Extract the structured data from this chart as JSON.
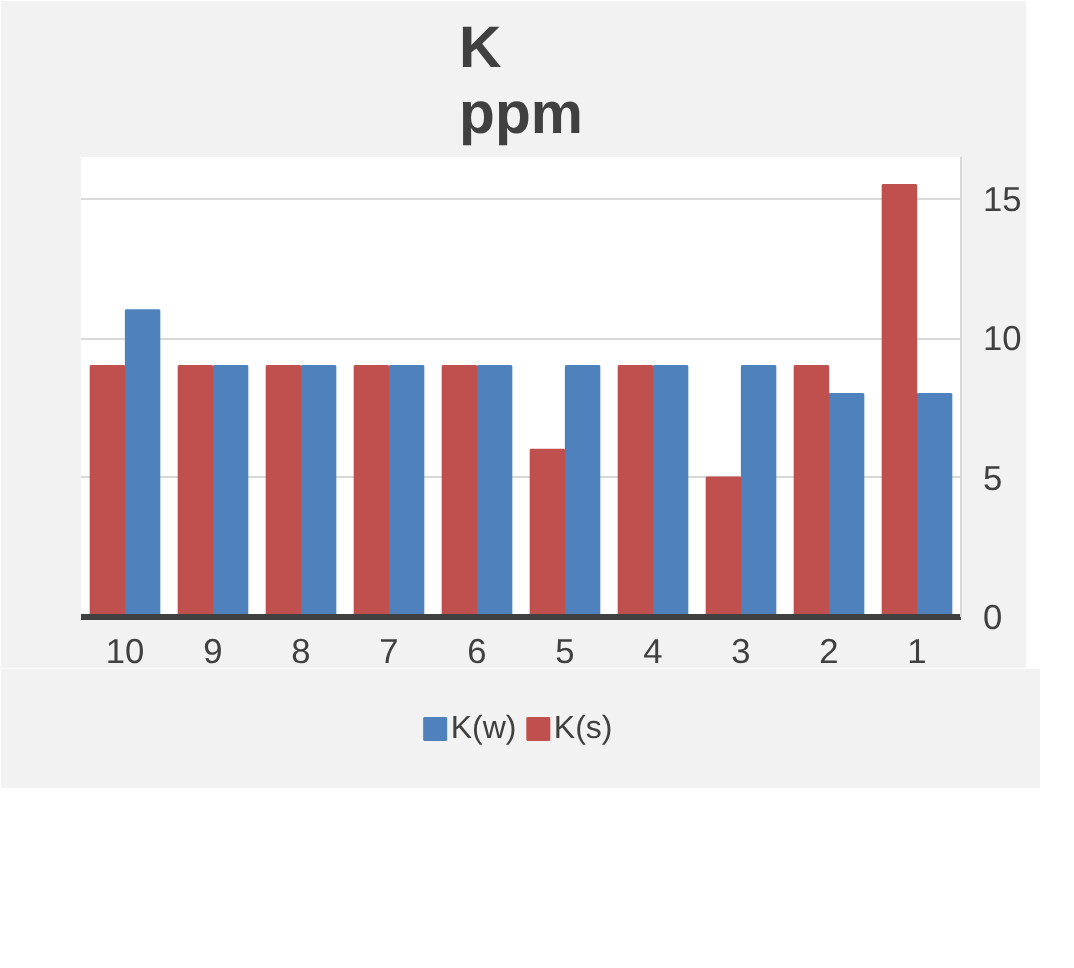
{
  "chart_data": {
    "type": "bar",
    "title": "K\nppm",
    "categories": [
      "10",
      "9",
      "8",
      "7",
      "6",
      "5",
      "4",
      "3",
      "2",
      "1"
    ],
    "series": [
      {
        "name": "K(w)",
        "color": "#4f81bd",
        "values": [
          11,
          9,
          9,
          9,
          9,
          9,
          9,
          9,
          8,
          8
        ]
      },
      {
        "name": "K(s)",
        "color": "#c0504d",
        "values": [
          9,
          9,
          9,
          9,
          9,
          6,
          9,
          5,
          9,
          15.5
        ]
      }
    ],
    "ylim": [
      0,
      16.5
    ],
    "yticks": [
      0,
      5,
      10,
      15
    ],
    "grid": "y",
    "legend": "bottom"
  }
}
